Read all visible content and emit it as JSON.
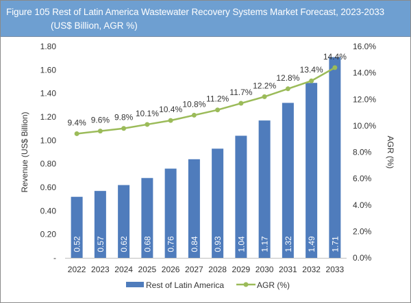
{
  "chart_data": {
    "type": "bar+line",
    "title": "Figure 105 Rest of Latin America Wastewater Recovery Systems Market Forecast, 2023-2033",
    "subtitle": "(US$ Billion, AGR %)",
    "categories": [
      "2022",
      "2023",
      "2024",
      "2025",
      "2026",
      "2027",
      "2028",
      "2029",
      "2030",
      "2031",
      "2032",
      "2033"
    ],
    "series": [
      {
        "name": "Rest of Latin America",
        "type": "bar",
        "axis": "left",
        "color": "#4f7cbc",
        "values": [
          0.52,
          0.57,
          0.62,
          0.68,
          0.76,
          0.84,
          0.93,
          1.04,
          1.17,
          1.32,
          1.49,
          1.71
        ],
        "labels": [
          "0.52",
          "0.57",
          "0.62",
          "0.68",
          "0.76",
          "0.84",
          "0.93",
          "1.04",
          "1.17",
          "1.32",
          "1.49",
          "1.71"
        ]
      },
      {
        "name": "AGR (%)",
        "type": "line",
        "axis": "right",
        "color": "#9bbb59",
        "values": [
          9.4,
          9.6,
          9.8,
          10.1,
          10.4,
          10.8,
          11.2,
          11.7,
          12.2,
          12.8,
          13.4,
          14.4
        ],
        "labels": [
          "9.4%",
          "9.6%",
          "9.8%",
          "10.1%",
          "10.4%",
          "10.8%",
          "11.2%",
          "11.7%",
          "12.2%",
          "12.8%",
          "13.4%",
          "14.4%"
        ]
      }
    ],
    "ylabel": "Revenue (US$ Billion)",
    "y2label": "AGR (%)",
    "ylim": [
      0,
      1.8
    ],
    "y2lim": [
      0,
      16
    ],
    "yticks": [
      "-",
      "0.20",
      "0.40",
      "0.60",
      "0.80",
      "1.00",
      "1.20",
      "1.40",
      "1.60",
      "1.80"
    ],
    "y2ticks": [
      "0.0%",
      "2.0%",
      "4.0%",
      "6.0%",
      "8.0%",
      "10.0%",
      "12.0%",
      "14.0%",
      "16.0%"
    ],
    "grid": false,
    "legend": "bottom"
  }
}
